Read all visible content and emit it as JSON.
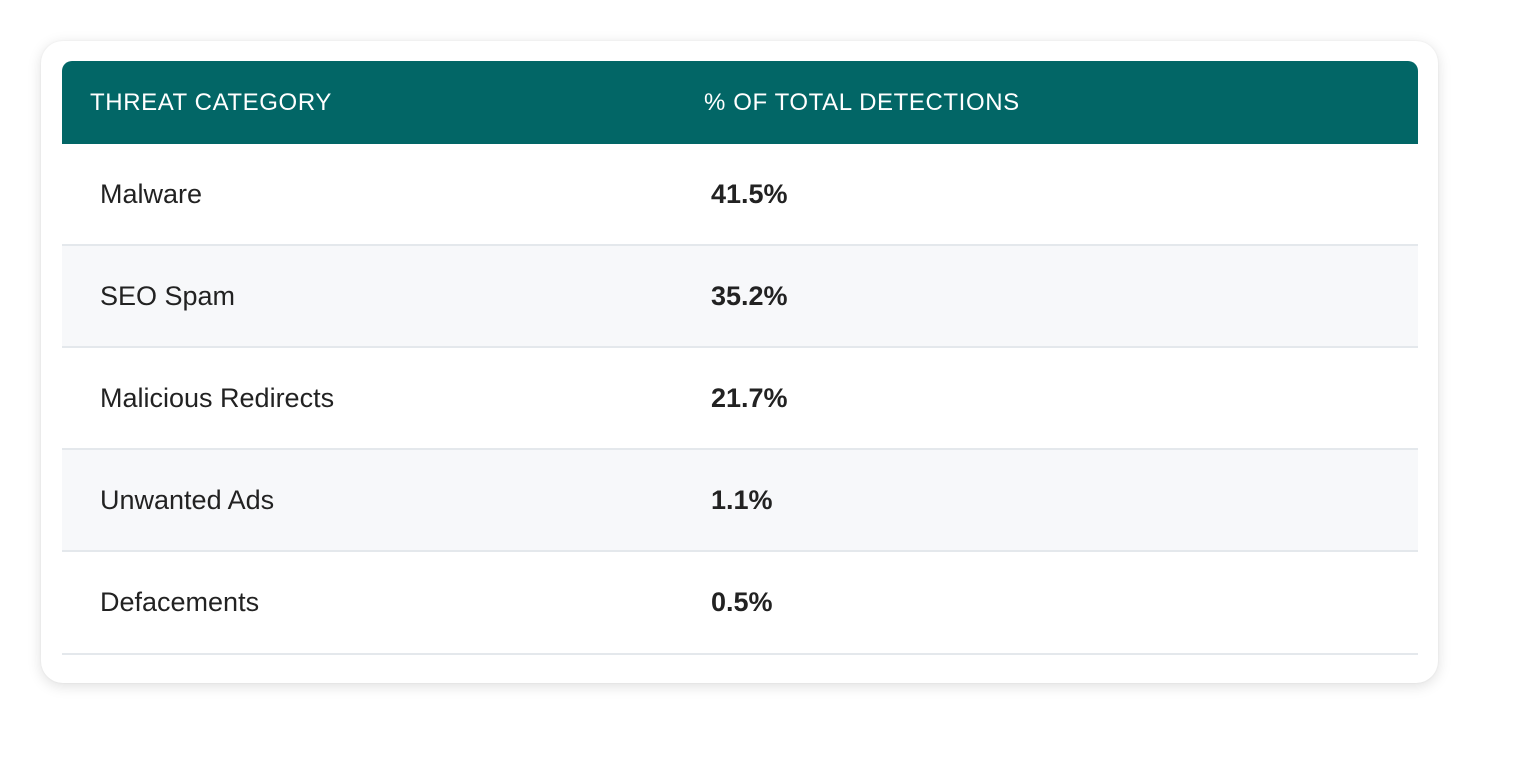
{
  "table": {
    "headers": {
      "category": "THREAT CATEGORY",
      "percentage": "% OF TOTAL DETECTIONS"
    },
    "rows": [
      {
        "category": "Malware",
        "percentage": "41.5%"
      },
      {
        "category": "SEO Spam",
        "percentage": "35.2%"
      },
      {
        "category": "Malicious Redirects",
        "percentage": "21.7%"
      },
      {
        "category": "Unwanted Ads",
        "percentage": "1.1%"
      },
      {
        "category": "Defacements",
        "percentage": "0.5%"
      }
    ]
  },
  "colors": {
    "header_background": "#026666",
    "header_text": "#ffffff",
    "alt_row_background": "#f7f8fa"
  }
}
